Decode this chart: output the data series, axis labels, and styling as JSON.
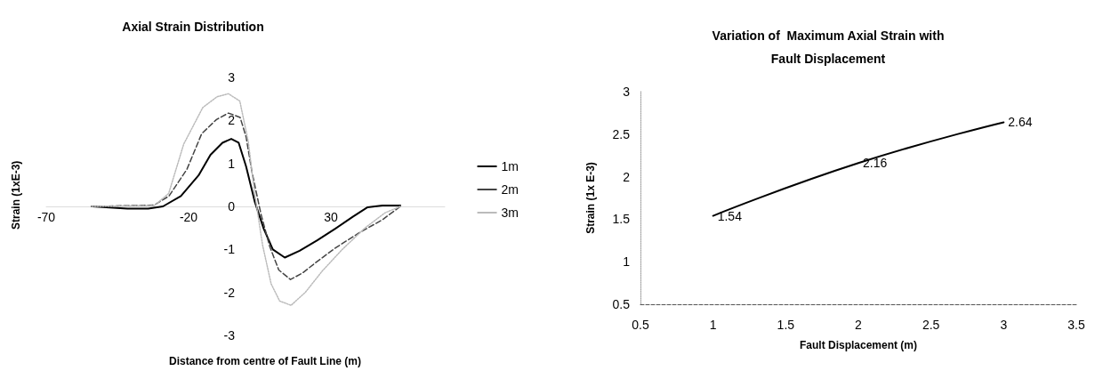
{
  "chart_data": [
    {
      "type": "line",
      "title": "Axial Strain Distribution",
      "xlabel": "Distance from centre of Fault Line (m)",
      "ylabel": "Strain (1xE-3)",
      "xlim": [
        -70,
        70
      ],
      "xticks": [
        -70,
        -20,
        30
      ],
      "ylim": [
        -3,
        3
      ],
      "yticks": [
        -3,
        -2,
        -1,
        0,
        1,
        2,
        3
      ],
      "grid": false,
      "legend": "right",
      "marker": "none",
      "series": [
        {
          "name": "1m",
          "color": "#000000",
          "line_style": "solid",
          "x": [
            -54,
            -41.5,
            -34.2,
            -29,
            -22.7,
            -16.5,
            -12.3,
            -8.1,
            -5,
            -2.4,
            0.2,
            3.3,
            6.4,
            9.6,
            13.8,
            19,
            25.2,
            31.5,
            37.7,
            42.9,
            48.1,
            54.4
          ],
          "values": [
            0,
            -0.05,
            -0.05,
            0,
            0.24,
            0.72,
            1.2,
            1.48,
            1.57,
            1.48,
            0.93,
            0.1,
            -0.52,
            -1,
            -1.19,
            -1.03,
            -0.79,
            -0.52,
            -0.24,
            -0.02,
            0.02,
            0.02
          ]
        },
        {
          "name": "2m",
          "color": "#444444",
          "line_style": "dashed",
          "x": [
            -54,
            -32.1,
            -26.9,
            -20.6,
            -15.4,
            -10.2,
            -6,
            -1.9,
            0.2,
            2.3,
            5.4,
            8.5,
            11.7,
            15.8,
            20,
            25.2,
            31.5,
            39.8,
            48.1,
            54.4
          ],
          "values": [
            0,
            0.03,
            0.24,
            0.86,
            1.69,
            2.02,
            2.17,
            2.07,
            1.62,
            0.79,
            -0.17,
            -0.93,
            -1.48,
            -1.7,
            -1.55,
            -1.28,
            -0.97,
            -0.62,
            -0.31,
            0
          ]
        },
        {
          "name": "3m",
          "color": "#bbbbbb",
          "line_style": "dotted",
          "x": [
            -54,
            -32,
            -27,
            -21.7,
            -15,
            -10,
            -6,
            -2,
            1,
            3,
            6,
            9,
            12,
            16,
            21,
            27,
            34,
            42,
            49,
            54.4
          ],
          "values": [
            0,
            0.02,
            0.3,
            1.45,
            2.3,
            2.55,
            2.62,
            2.45,
            1.5,
            0.4,
            -0.9,
            -1.8,
            -2.2,
            -2.3,
            -2,
            -1.5,
            -1,
            -0.5,
            -0.15,
            0
          ]
        }
      ]
    },
    {
      "type": "line",
      "title": "Variation of  Maximum Axial Strain with\nFault Displacement",
      "xlabel": "Fault Displacement (m)",
      "ylabel": "Strain (1x E-3)",
      "xlim": [
        0.5,
        3.5
      ],
      "xticks": [
        0.5,
        1,
        1.5,
        2,
        2.5,
        3,
        3.5
      ],
      "ylim": [
        0.5,
        3
      ],
      "yticks": [
        0.5,
        1,
        1.5,
        2,
        2.5,
        3
      ],
      "grid": false,
      "marker": "none",
      "data_labels": true,
      "series": [
        {
          "color": "#000000",
          "line_style": "solid",
          "x": [
            1,
            2,
            3
          ],
          "values": [
            1.54,
            2.16,
            2.64
          ]
        }
      ]
    }
  ]
}
